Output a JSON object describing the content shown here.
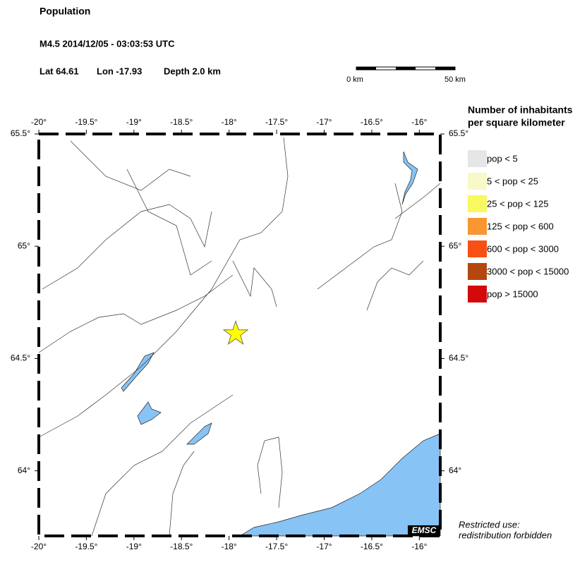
{
  "header": {
    "title": "Population",
    "event": "M4.5  2014/12/05 - 03:03:53 UTC",
    "lat": "Lat 64.61",
    "lon": "Lon -17.93",
    "depth": "Depth  2.0 km"
  },
  "scale_bar": {
    "start": "0 km",
    "end": "50 km"
  },
  "map": {
    "lon_range": [
      -20,
      -15.78
    ],
    "lat_range": [
      63.71,
      65.5
    ],
    "lon_ticks": [
      {
        "value": -20,
        "label": "-20°"
      },
      {
        "value": -19.5,
        "label": "-19.5°"
      },
      {
        "value": -19,
        "label": "-19°"
      },
      {
        "value": -18.5,
        "label": "-18.5°"
      },
      {
        "value": -18,
        "label": "-18°"
      },
      {
        "value": -17.5,
        "label": "-17.5°"
      },
      {
        "value": -17,
        "label": "-17°"
      },
      {
        "value": -16.5,
        "label": "-16.5°"
      },
      {
        "value": -16,
        "label": "-16°"
      }
    ],
    "lat_ticks": [
      {
        "value": 65.5,
        "label": "65.5°"
      },
      {
        "value": 65,
        "label": "65°"
      },
      {
        "value": 64.5,
        "label": "64.5°"
      },
      {
        "value": 64,
        "label": "64°"
      }
    ],
    "epicenter": {
      "lon": -17.93,
      "lat": 64.61,
      "color": "#ffff00"
    }
  },
  "legend": {
    "title": [
      "Number of inhabitants",
      "per square kilometer"
    ],
    "items": [
      {
        "label": "pop < 5",
        "color": "#e6e6e6"
      },
      {
        "label": "5 < pop < 25",
        "color": "#f8f8c8"
      },
      {
        "label": "25 < pop < 125",
        "color": "#f8f860"
      },
      {
        "label": "125 < pop < 600",
        "color": "#f89632"
      },
      {
        "label": "600 < pop < 3000",
        "color": "#f85014"
      },
      {
        "label": "3000 < pop < 15000",
        "color": "#b4460f"
      },
      {
        "label": "pop > 15000",
        "color": "#d20a0a"
      }
    ]
  },
  "badge": "EMSC",
  "notice": [
    "Restricted use:",
    "redistribution forbidden"
  ]
}
